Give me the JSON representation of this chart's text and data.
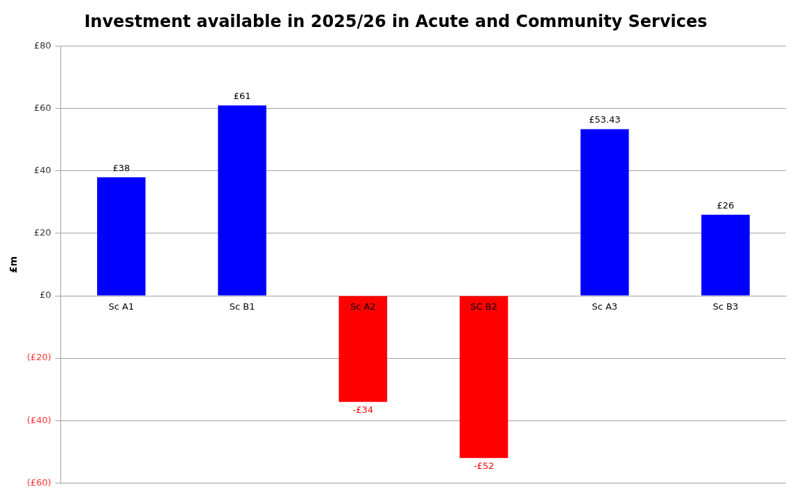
{
  "chart_data": {
    "type": "bar",
    "title": "Investment available in 2025/26 in Acute and Community Services",
    "ylabel": "£m",
    "categories": [
      "Sc A1",
      "Sc B1",
      "Sc A2",
      "SC B2",
      "Sc A3",
      "Sc B3"
    ],
    "values": [
      38,
      61,
      -34,
      -52,
      53.43,
      26
    ],
    "colors": [
      "#0000ff",
      "#0000ff",
      "#ff0000",
      "#ff0000",
      "#0000ff",
      "#0000ff"
    ],
    "value_labels": [
      "£38",
      "£61",
      "-£34",
      "-£52",
      "£53.43",
      "£26"
    ],
    "ylim": [
      -60,
      80
    ],
    "yticks": [
      {
        "value": -60,
        "label": "(£60)"
      },
      {
        "value": -40,
        "label": "(£40)"
      },
      {
        "value": -20,
        "label": "(£20)"
      },
      {
        "value": 0,
        "label": "£0"
      },
      {
        "value": 20,
        "label": "£20"
      },
      {
        "value": 40,
        "label": "£40"
      },
      {
        "value": 60,
        "label": "£60"
      },
      {
        "value": 80,
        "label": "£80"
      }
    ],
    "grid": "y",
    "legend": false
  }
}
